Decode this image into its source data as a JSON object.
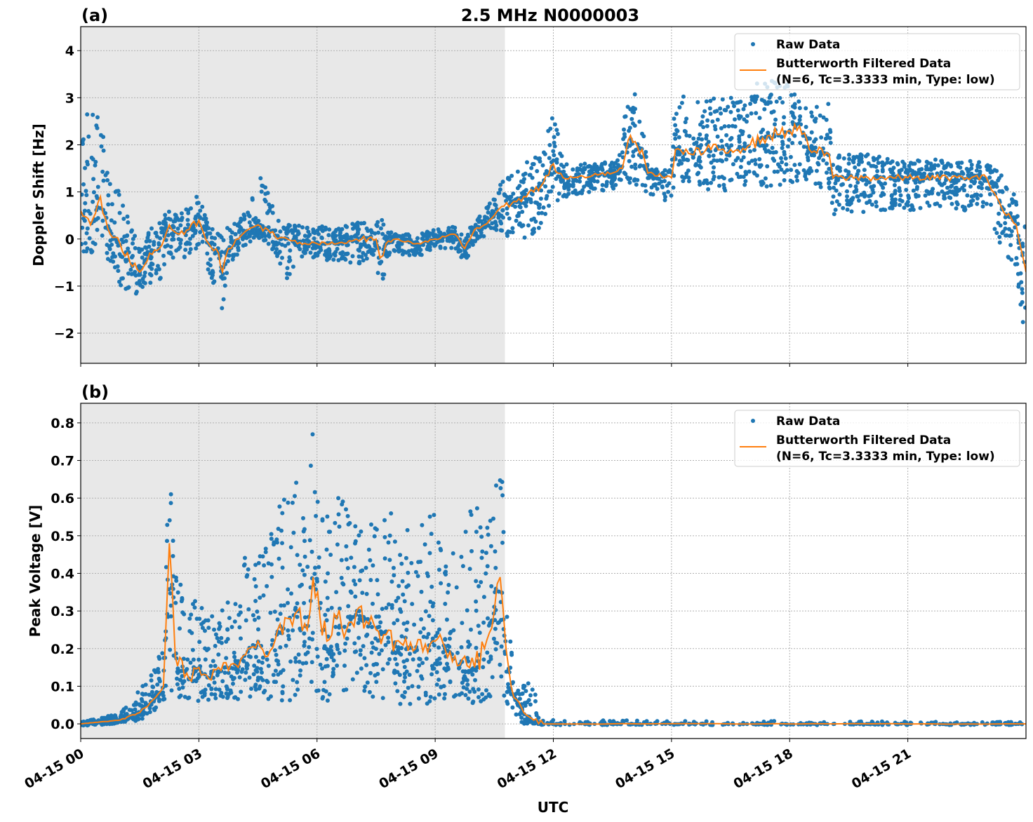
{
  "chart_data": {
    "title": "2.5 MHz N0000003",
    "xlabel": "UTC",
    "x_tick_labels": [
      "04-15 00",
      "04-15 03",
      "04-15 06",
      "04-15 09",
      "04-15 12",
      "04-15 15",
      "04-15 18",
      "04-15 21"
    ],
    "x_ticks_hours": [
      0,
      3,
      6,
      9,
      12,
      15,
      18,
      21
    ],
    "xlim_hours": [
      0,
      24
    ],
    "shaded_interval_hours": [
      0,
      10.77
    ],
    "colors": {
      "raw": "#1f77b4",
      "filtered": "#ff7f0e",
      "shade": "#e8e8e8",
      "grid": "#b0b0b0"
    },
    "legend": {
      "raw": "Raw Data",
      "filtered_line1": "Butterworth Filtered Data",
      "filtered_line2": "(N=6, Tc=3.3333 min, Type: low)",
      "placement": "top-right"
    },
    "grid": true,
    "panels": [
      {
        "label": "(a)",
        "type": "scatter+line",
        "ylabel": "Doppler Shift [Hz]",
        "ylim": [
          -2.64,
          4.51
        ],
        "y_ticks": [
          -2,
          -1,
          0,
          1,
          2,
          3,
          4
        ],
        "y_tick_labels": [
          "−2",
          "−1",
          "0",
          "1",
          "2",
          "3",
          "4"
        ],
        "columns": [
          "hour",
          "filtered",
          "raw_min",
          "raw_max"
        ],
        "data": [
          [
            0,
            0.6,
            -0.4,
            2.4
          ],
          [
            0.25,
            0.3,
            -0.3,
            2.8
          ],
          [
            0.5,
            0.9,
            -0.2,
            2.5
          ],
          [
            0.75,
            0.1,
            -0.5,
            1.5
          ],
          [
            1,
            -0.1,
            -1,
            1
          ],
          [
            1.25,
            -0.5,
            -1.2,
            0.3
          ],
          [
            1.5,
            -0.7,
            -1.3,
            0
          ],
          [
            1.75,
            -0.3,
            -1,
            0.2
          ],
          [
            2,
            -0.2,
            -0.9,
            0.5
          ],
          [
            2.25,
            0.3,
            -0.5,
            0.6
          ],
          [
            2.5,
            0.1,
            -0.3,
            0.6
          ],
          [
            2.75,
            0.2,
            -0.6,
            0.7
          ],
          [
            3,
            0.4,
            -0.1,
            1
          ],
          [
            3.25,
            -0.1,
            -0.8,
            0.3
          ],
          [
            3.5,
            -0.3,
            -1.3,
            0.2
          ],
          [
            3.6,
            -0.7,
            -1.5,
            0
          ],
          [
            3.75,
            -0.2,
            -0.6,
            0.3
          ],
          [
            4,
            0,
            -0.3,
            0.4
          ],
          [
            4.25,
            0.2,
            -0.1,
            0.7
          ],
          [
            4.5,
            0.3,
            0,
            1.4
          ],
          [
            4.75,
            0.2,
            -0.1,
            1
          ],
          [
            5,
            0,
            -0.4,
            0.4
          ],
          [
            5.25,
            0,
            -0.9,
            0.3
          ],
          [
            5.5,
            -0.1,
            -0.4,
            0.3
          ],
          [
            6,
            -0.1,
            -0.4,
            0.3
          ],
          [
            6.5,
            -0.1,
            -0.5,
            0.2
          ],
          [
            7,
            0,
            -0.6,
            0.4
          ],
          [
            7.5,
            0,
            -0.3,
            0.3
          ],
          [
            7.6,
            -0.4,
            -1.6,
            0.5
          ],
          [
            7.75,
            -0.1,
            -0.4,
            0.2
          ],
          [
            8,
            0,
            -0.3,
            0.1
          ],
          [
            8.5,
            -0.1,
            -0.4,
            0.1
          ],
          [
            9,
            0,
            -0.2,
            0.2
          ],
          [
            9.5,
            0.1,
            -0.2,
            0.3
          ],
          [
            9.75,
            -0.2,
            -0.5,
            0.1
          ],
          [
            10,
            0.2,
            -0.1,
            0.4
          ],
          [
            10.25,
            0.3,
            0,
            0.6
          ],
          [
            10.5,
            0.5,
            0.2,
            0.9
          ],
          [
            10.75,
            0.7,
            0.1,
            1.3
          ],
          [
            11,
            0.8,
            0,
            1.4
          ],
          [
            11.25,
            0.9,
            0,
            1.6
          ],
          [
            11.5,
            1,
            0.1,
            1.7
          ],
          [
            11.75,
            1.2,
            0.3,
            1.9
          ],
          [
            12,
            1.6,
            0.7,
            2.8
          ],
          [
            12.25,
            1.3,
            0.9,
            1.6
          ],
          [
            12.5,
            1.3,
            0.9,
            1.6
          ],
          [
            13,
            1.35,
            1,
            1.6
          ],
          [
            13.5,
            1.4,
            1.05,
            1.65
          ],
          [
            13.75,
            1.5,
            1.1,
            1.9
          ],
          [
            13.9,
            2.1,
            1.2,
            3.6
          ],
          [
            14.25,
            1.9,
            1.1,
            2.7
          ],
          [
            14.4,
            1.4,
            0.9,
            1.5
          ],
          [
            15,
            1.3,
            0.7,
            1.5
          ],
          [
            15.1,
            1.9,
            1.4,
            3.2
          ],
          [
            15.5,
            1.8,
            0.9,
            2.9
          ],
          [
            16,
            1.9,
            1,
            3
          ],
          [
            16.5,
            1.9,
            1,
            3.1
          ],
          [
            17,
            2,
            1.1,
            3.3
          ],
          [
            17.5,
            2.2,
            1.1,
            3.4
          ],
          [
            18,
            2.3,
            1.2,
            3.3
          ],
          [
            18.25,
            2.4,
            1.2,
            3
          ],
          [
            18.5,
            1.9,
            1.1,
            2.9
          ],
          [
            19,
            1.8,
            1.1,
            2.9
          ],
          [
            19.1,
            1.3,
            0.5,
            1.8
          ],
          [
            19.5,
            1.3,
            0.5,
            1.8
          ],
          [
            20,
            1.3,
            0.6,
            1.8
          ],
          [
            21,
            1.3,
            0.6,
            1.7
          ],
          [
            22,
            1.3,
            0.6,
            1.7
          ],
          [
            22.5,
            1.3,
            0.6,
            1.7
          ],
          [
            23,
            1.3,
            0.6,
            1.6
          ],
          [
            23.25,
            0.9,
            0,
            1.5
          ],
          [
            23.5,
            0.5,
            -0.5,
            1.2
          ],
          [
            23.75,
            0.3,
            -0.8,
            0.9
          ],
          [
            24,
            -0.7,
            -2.3,
            0.5
          ]
        ]
      },
      {
        "label": "(b)",
        "type": "scatter+line",
        "ylabel": "Peak Voltage [V]",
        "ylim": [
          -0.039,
          0.852
        ],
        "y_ticks": [
          0,
          0.1,
          0.2,
          0.3,
          0.4,
          0.5,
          0.6,
          0.7,
          0.8
        ],
        "y_tick_labels": [
          "0.0",
          "0.1",
          "0.2",
          "0.3",
          "0.4",
          "0.5",
          "0.6",
          "0.7",
          "0.8"
        ],
        "columns": [
          "hour",
          "filtered",
          "raw_min",
          "raw_max"
        ],
        "data": [
          [
            0,
            0,
            -0.005,
            0.005
          ],
          [
            1,
            0.01,
            0,
            0.03
          ],
          [
            1.5,
            0.03,
            0.01,
            0.09
          ],
          [
            1.9,
            0.07,
            0.03,
            0.15
          ],
          [
            2.1,
            0.1,
            0.05,
            0.25
          ],
          [
            2.25,
            0.48,
            0.1,
            0.76
          ],
          [
            2.4,
            0.18,
            0.07,
            0.42
          ],
          [
            2.75,
            0.12,
            0.05,
            0.3
          ],
          [
            3,
            0.15,
            0.06,
            0.35
          ],
          [
            3.25,
            0.12,
            0.06,
            0.28
          ],
          [
            3.5,
            0.15,
            0.07,
            0.3
          ],
          [
            4,
            0.15,
            0.06,
            0.35
          ],
          [
            4.25,
            0.2,
            0.07,
            0.55
          ],
          [
            4.5,
            0.22,
            0.08,
            0.45
          ],
          [
            4.75,
            0.18,
            0.06,
            0.5
          ],
          [
            5,
            0.25,
            0.06,
            0.6
          ],
          [
            5.25,
            0.28,
            0.06,
            0.6
          ],
          [
            5.5,
            0.3,
            0.07,
            0.65
          ],
          [
            5.75,
            0.25,
            0.06,
            0.55
          ],
          [
            5.9,
            0.39,
            0.08,
            0.8
          ],
          [
            6.25,
            0.22,
            0.06,
            0.6
          ],
          [
            6.5,
            0.28,
            0.08,
            0.6
          ],
          [
            6.75,
            0.25,
            0.07,
            0.6
          ],
          [
            7,
            0.3,
            0.06,
            0.55
          ],
          [
            7.5,
            0.25,
            0.06,
            0.6
          ],
          [
            8,
            0.22,
            0.05,
            0.55
          ],
          [
            8.5,
            0.2,
            0.05,
            0.5
          ],
          [
            9,
            0.22,
            0.05,
            0.6
          ],
          [
            9.25,
            0.2,
            0.06,
            0.5
          ],
          [
            9.5,
            0.18,
            0.06,
            0.45
          ],
          [
            10,
            0.15,
            0.05,
            0.6
          ],
          [
            10.25,
            0.2,
            0.05,
            0.5
          ],
          [
            10.5,
            0.3,
            0.07,
            0.6
          ],
          [
            10.65,
            0.39,
            0.1,
            0.77
          ],
          [
            10.8,
            0.2,
            0.06,
            0.4
          ],
          [
            11,
            0.07,
            0.02,
            0.15
          ],
          [
            11.25,
            0.03,
            0,
            0.1
          ],
          [
            11.5,
            0.01,
            0,
            0.13
          ],
          [
            11.75,
            0,
            -0.003,
            0.01
          ],
          [
            24,
            0,
            -0.003,
            0.005
          ]
        ]
      }
    ]
  }
}
